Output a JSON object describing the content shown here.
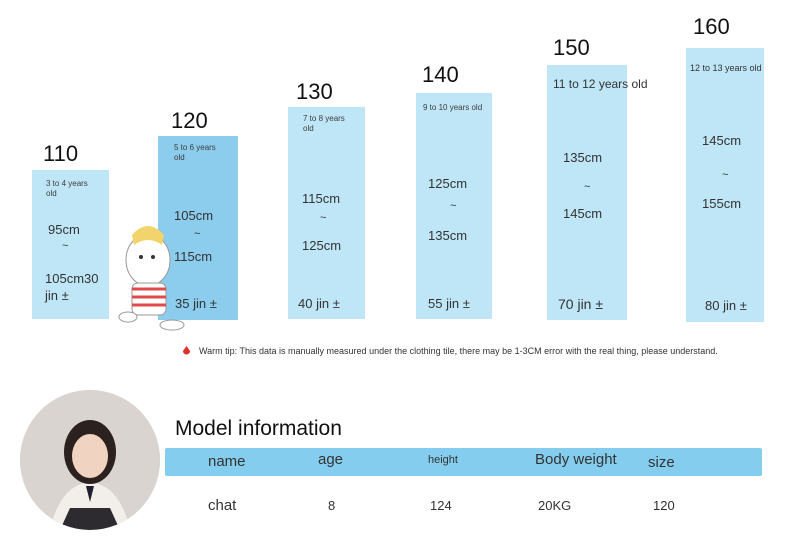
{
  "sizes": [
    {
      "size": "110",
      "age": "3 to 4 years old",
      "height_from": "95cm",
      "tilde": "~",
      "height_to": "105cm30",
      "weight": "jin ±"
    },
    {
      "size": "120",
      "age": "5 to 6 years old",
      "height_from": "105cm",
      "tilde": "~",
      "height_to": "115cm",
      "weight": "35 jin ±"
    },
    {
      "size": "130",
      "age": "7 to 8 years old",
      "height_from": "115cm",
      "tilde": "~",
      "height_to": "125cm",
      "weight": "40 jin ±"
    },
    {
      "size": "140",
      "age": "9 to 10 years old",
      "height_from": "125cm",
      "tilde": "~",
      "height_to": "135cm",
      "weight": "55 jin ±"
    },
    {
      "size": "150",
      "age": "11 to 12 years old",
      "height_from": "135cm",
      "tilde": "~",
      "height_to": "145cm",
      "weight": "70 jin ±"
    },
    {
      "size": "160",
      "age": "12 to 13 years old",
      "height_from": "145cm",
      "tilde": "~",
      "height_to": "155cm",
      "weight": "80 jin ±"
    }
  ],
  "tip": "Warm tip: This data is manually measured under the clothing tile, there may be 1-3CM error with the real thing, please understand.",
  "model": {
    "title": "Model information",
    "headers": {
      "name": "name",
      "age": "age",
      "height": "height",
      "weight": "Body weight",
      "size": "size"
    },
    "values": {
      "name": "chat",
      "age": "8",
      "height": "124",
      "weight": "20KG",
      "size": "120"
    }
  },
  "colors": {
    "bar_light": "#bfe6f7",
    "bar_dark": "#8ccdee",
    "header_bar": "#84cdee",
    "tip_icon": "#e0302a"
  }
}
